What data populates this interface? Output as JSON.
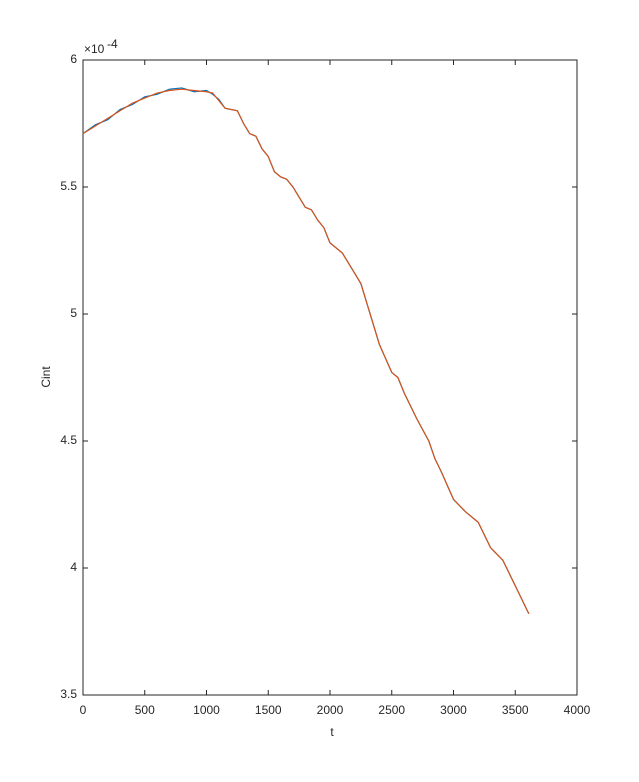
{
  "chart_data": {
    "type": "line",
    "x_label": "t",
    "y_label": "Cint",
    "y_scale_base": "×10",
    "y_scale_exponent": "-4",
    "x": [
      0,
      100,
      200,
      300,
      400,
      500,
      600,
      700,
      800,
      900,
      1000,
      1050,
      1100,
      1150,
      1250,
      1300,
      1350,
      1400,
      1450,
      1500,
      1550,
      1600,
      1650,
      1700,
      1750,
      1800,
      1850,
      1900,
      1950,
      2000,
      2100,
      2200,
      2250,
      2300,
      2400,
      2500,
      2550,
      2600,
      2700,
      2800,
      2850,
      2900,
      3000,
      3100,
      3200,
      3300,
      3400,
      3500,
      3610
    ],
    "series": [
      {
        "color": "#0072bd",
        "values": [
          5.71,
          5.745,
          5.765,
          5.805,
          5.825,
          5.855,
          5.865,
          5.885,
          5.89,
          5.875,
          5.88,
          5.865,
          5.845,
          5.81,
          5.8,
          5.75,
          5.71,
          5.7,
          5.65,
          5.62,
          5.56,
          5.54,
          5.53,
          5.5,
          5.46,
          5.42,
          5.41,
          5.37,
          5.34,
          5.28,
          5.24,
          5.16,
          5.12,
          5.04,
          4.88,
          4.77,
          4.75,
          4.69,
          4.59,
          4.5,
          4.43,
          4.38,
          4.27,
          4.22,
          4.18,
          4.08,
          4.03,
          3.93,
          3.82
        ]
      },
      {
        "color": "#d95319",
        "values": [
          5.71,
          5.74,
          5.77,
          5.8,
          5.83,
          5.85,
          5.87,
          5.88,
          5.885,
          5.88,
          5.875,
          5.87,
          5.84,
          5.81,
          5.8,
          5.75,
          5.71,
          5.7,
          5.65,
          5.62,
          5.56,
          5.54,
          5.53,
          5.5,
          5.46,
          5.42,
          5.41,
          5.37,
          5.34,
          5.28,
          5.24,
          5.16,
          5.12,
          5.04,
          4.88,
          4.77,
          4.75,
          4.69,
          4.59,
          4.5,
          4.43,
          4.38,
          4.27,
          4.22,
          4.18,
          4.08,
          4.03,
          3.93,
          3.82
        ]
      }
    ],
    "xlim": [
      0,
      4000
    ],
    "xticks": [
      0,
      500,
      1000,
      1500,
      2000,
      2500,
      3000,
      3500,
      4000
    ],
    "ylim": [
      3.5,
      6
    ],
    "yticks": [
      3.5,
      4,
      4.5,
      5,
      5.5,
      6
    ],
    "grid": false
  }
}
